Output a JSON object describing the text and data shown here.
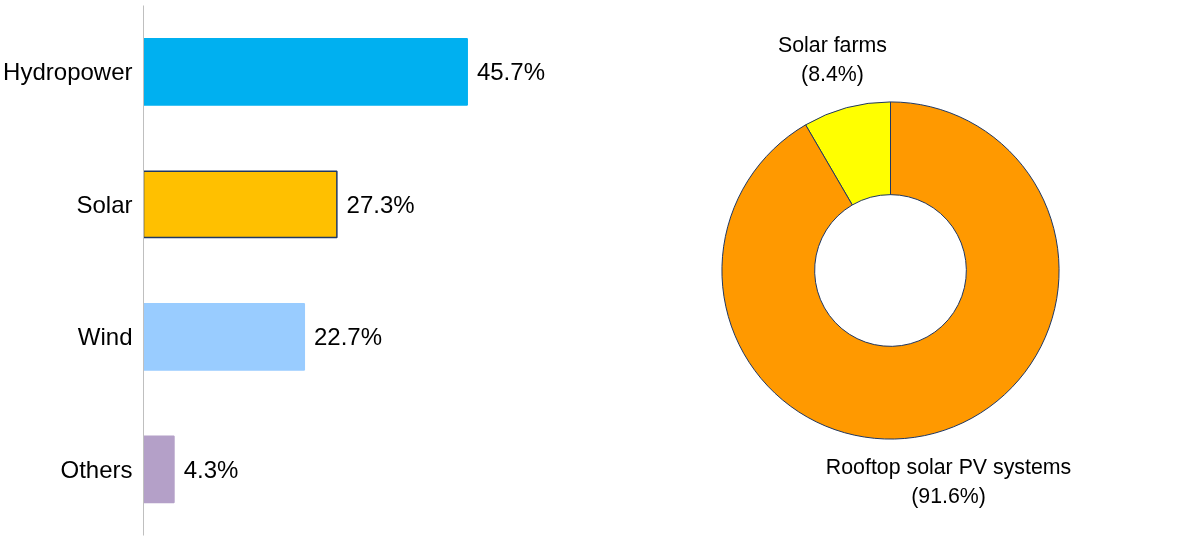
{
  "chart_data": [
    {
      "type": "bar",
      "orientation": "horizontal",
      "categories": [
        "Hydropower",
        "Solar",
        "Wind",
        "Others"
      ],
      "values": [
        45.7,
        27.3,
        22.7,
        4.3
      ],
      "colors": [
        "#00b0f0",
        "#ffc000",
        "#99ccff",
        "#b4a0c8"
      ],
      "value_labels": [
        "45.7%",
        "27.3%",
        "22.7%",
        "4.3%"
      ],
      "grid": false,
      "tick_labels": "y"
    },
    {
      "type": "donut",
      "categories": [
        "Solar farms",
        "Rooftop solar PV systems"
      ],
      "values": [
        8.4,
        91.6
      ],
      "colors": [
        "#ffff00",
        "#ff9900"
      ],
      "value_labels": [
        "(8.4%)",
        "(91.6%)"
      ]
    }
  ]
}
